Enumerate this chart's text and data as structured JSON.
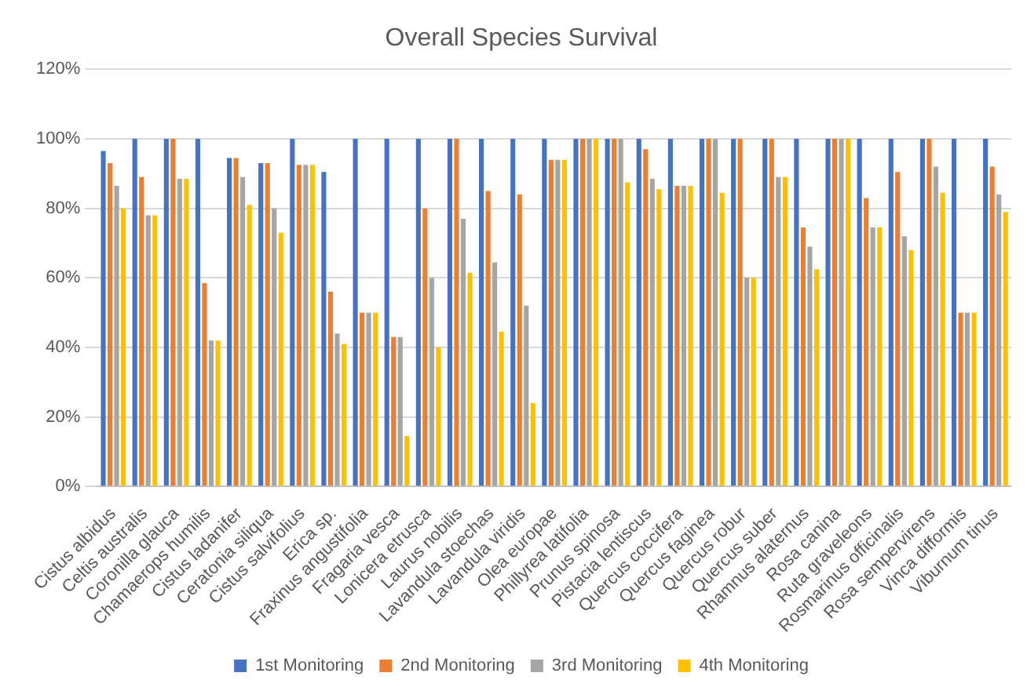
{
  "chart_data": {
    "type": "bar",
    "title": "Overall Species Survival",
    "categories": [
      "Cistus albidus",
      "Celtis australis",
      "Coronilla glauca",
      "Chamaerops humilis",
      "Cistus ladanifer",
      "Ceratonia siliqua",
      "Cistus salvifolius",
      "Erica sp.",
      "Fraxinus angustifolia",
      "Fragaria vesca",
      "Lonicera etrusca",
      "Laurus nobilis",
      "Lavandula stoechas",
      "Lavandula viridis",
      "Olea europae",
      "Phillyrea latifolia",
      "Prunus spinosa",
      "Pistacia lentiscus",
      "Quercus coccifera",
      "Quercus faginea",
      "Quercus robur",
      "Quercus suber",
      "Rhamnus alaternus",
      "Rosa canina",
      "Ruta graveleons",
      "Rosmarinus officinalis",
      "Rosa sempervirens",
      "Vinca difformis",
      "Viburnum tinus"
    ],
    "series": [
      {
        "name": "1st Monitoring",
        "color": "#4472c4",
        "values": [
          96.5,
          100,
          100,
          100,
          94.5,
          93,
          100,
          90.5,
          100,
          100,
          100,
          100,
          100,
          100,
          100,
          100,
          100,
          100,
          100,
          100,
          100,
          100,
          100,
          100,
          100,
          100,
          100,
          100,
          100
        ]
      },
      {
        "name": "2nd Monitoring",
        "color": "#ed7d31",
        "values": [
          93,
          89,
          100,
          58.5,
          94.5,
          93,
          92.5,
          56,
          50,
          43,
          80,
          100,
          85,
          84,
          94,
          100,
          100,
          97,
          86.5,
          100,
          100,
          100,
          74.5,
          100,
          83,
          90.5,
          100,
          50,
          92
        ]
      },
      {
        "name": "3rd Monitoring",
        "color": "#a5a5a5",
        "values": [
          86.5,
          78,
          88.5,
          42,
          89,
          80,
          92.5,
          44,
          50,
          43,
          60,
          77,
          64.5,
          52,
          94,
          100,
          100,
          88.5,
          86.5,
          100,
          60,
          89,
          69,
          100,
          74.5,
          72,
          92,
          50,
          84
        ]
      },
      {
        "name": "4th Monitoring",
        "color": "#ffc000",
        "values": [
          80,
          78,
          88.5,
          42,
          81,
          73,
          92.5,
          41,
          50,
          14.5,
          40,
          61.5,
          44.5,
          24,
          94,
          100,
          87.5,
          85.5,
          86.5,
          84.5,
          60,
          89,
          62.5,
          100,
          74.5,
          68,
          84.5,
          50,
          79
        ]
      }
    ],
    "ylim": [
      0,
      120
    ],
    "yticks": [
      {
        "value": 0,
        "label": "0%"
      },
      {
        "value": 20,
        "label": "20%"
      },
      {
        "value": 40,
        "label": "40%"
      },
      {
        "value": 60,
        "label": "60%"
      },
      {
        "value": 80,
        "label": "80%"
      },
      {
        "value": 100,
        "label": "100%"
      },
      {
        "value": 120,
        "label": "120%"
      }
    ],
    "grid": "y",
    "legend": "bottom"
  }
}
